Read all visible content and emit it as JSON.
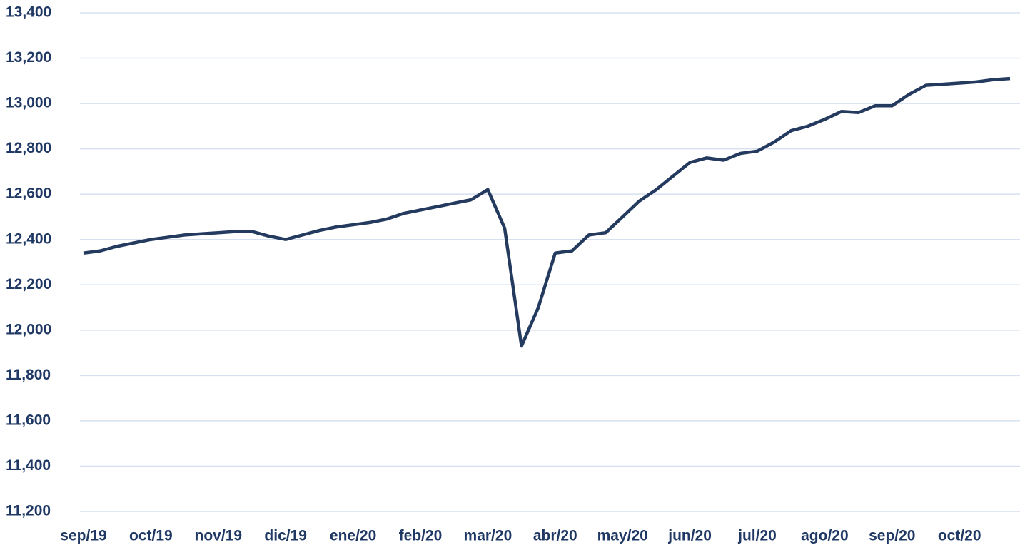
{
  "chart_data": {
    "type": "line",
    "categories": [
      "sep/19",
      null,
      null,
      null,
      "oct/19",
      null,
      null,
      null,
      "nov/19",
      null,
      null,
      null,
      "dic/19",
      null,
      null,
      null,
      "ene/20",
      null,
      null,
      null,
      "feb/20",
      null,
      null,
      null,
      "mar/20",
      null,
      null,
      null,
      "abr/20",
      null,
      null,
      null,
      "may/20",
      null,
      null,
      null,
      "jun/20",
      null,
      null,
      null,
      "jul/20",
      null,
      null,
      null,
      "ago/20",
      null,
      null,
      null,
      "sep/20",
      null,
      null,
      null,
      "oct/20",
      null,
      null,
      null
    ],
    "series": [
      {
        "color": "#243a5e",
        "values": [
          12340,
          12350,
          12370,
          12385,
          12400,
          12410,
          12420,
          12425,
          12430,
          12435,
          12435,
          12415,
          12400,
          12420,
          12440,
          12455,
          12465,
          12475,
          12490,
          12515,
          12530,
          12545,
          12560,
          12575,
          12620,
          12450,
          11930,
          12100,
          12340,
          12350,
          12420,
          12430,
          12500,
          12570,
          12620,
          12680,
          12740,
          12760,
          12750,
          12780,
          12790,
          12830,
          12880,
          12900,
          12930,
          12965,
          12960,
          12990,
          12990,
          13040,
          13080,
          13085,
          13090,
          13095,
          13105,
          13110
        ]
      }
    ],
    "ylim": [
      11200,
      13400
    ],
    "yticks": [
      {
        "value": 11200,
        "label": "11,200"
      },
      {
        "value": 11400,
        "label": "11,400"
      },
      {
        "value": 11600,
        "label": "11,600"
      },
      {
        "value": 11800,
        "label": "11,800"
      },
      {
        "value": 12000,
        "label": "12,000"
      },
      {
        "value": 12200,
        "label": "12,200"
      },
      {
        "value": 12400,
        "label": "12,400"
      },
      {
        "value": 12600,
        "label": "12,600"
      },
      {
        "value": 12800,
        "label": "12,800"
      },
      {
        "value": 13000,
        "label": "13,000"
      },
      {
        "value": 13200,
        "label": "13,200"
      },
      {
        "value": 13400,
        "label": "13,400"
      }
    ],
    "grid": true
  }
}
